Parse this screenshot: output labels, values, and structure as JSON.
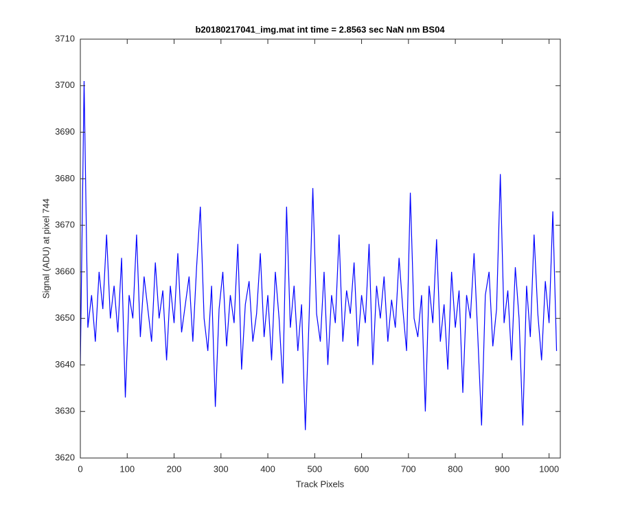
{
  "chart_data": {
    "type": "line",
    "title": "b20180217041_img.mat int time = 2.8563 sec  NaN nm BS04",
    "x_label": "Track Pixels",
    "y_label": "Signal (ADU) at pixel 744",
    "color": "#0000ff",
    "x": [
      0,
      8,
      16,
      24,
      32,
      40,
      48,
      56,
      64,
      72,
      80,
      88,
      96,
      104,
      112,
      120,
      128,
      136,
      144,
      152,
      160,
      168,
      176,
      184,
      192,
      200,
      208,
      216,
      224,
      232,
      240,
      248,
      256,
      264,
      272,
      280,
      288,
      296,
      304,
      312,
      320,
      328,
      336,
      344,
      352,
      360,
      368,
      376,
      384,
      392,
      400,
      408,
      416,
      424,
      432,
      440,
      448,
      456,
      464,
      472,
      480,
      488,
      496,
      504,
      512,
      520,
      528,
      536,
      544,
      552,
      560,
      568,
      576,
      584,
      592,
      600,
      608,
      616,
      624,
      632,
      640,
      648,
      656,
      664,
      672,
      680,
      688,
      696,
      704,
      712,
      720,
      728,
      736,
      744,
      752,
      760,
      768,
      776,
      784,
      792,
      800,
      808,
      816,
      824,
      832,
      840,
      848,
      856,
      864,
      872,
      880,
      888,
      896,
      904,
      912,
      920,
      928,
      936,
      944,
      952,
      960,
      968,
      976,
      984,
      992,
      1000,
      1008,
      1016
    ],
    "values": [
      3640,
      3701,
      3648,
      3655,
      3645,
      3660,
      3652,
      3668,
      3650,
      3657,
      3647,
      3663,
      3633,
      3655,
      3650,
      3668,
      3646,
      3659,
      3652,
      3645,
      3662,
      3650,
      3656,
      3641,
      3657,
      3649,
      3664,
      3647,
      3653,
      3659,
      3645,
      3661,
      3674,
      3650,
      3643,
      3657,
      3631,
      3652,
      3660,
      3644,
      3655,
      3649,
      3666,
      3639,
      3653,
      3658,
      3645,
      3651,
      3664,
      3646,
      3655,
      3641,
      3660,
      3650,
      3636,
      3674,
      3648,
      3657,
      3643,
      3653,
      3626,
      3650,
      3678,
      3651,
      3645,
      3660,
      3640,
      3655,
      3649,
      3668,
      3645,
      3656,
      3651,
      3662,
      3644,
      3655,
      3649,
      3666,
      3640,
      3657,
      3650,
      3659,
      3645,
      3654,
      3648,
      3663,
      3652,
      3643,
      3677,
      3650,
      3646,
      3655,
      3630,
      3657,
      3649,
      3667,
      3645,
      3653,
      3639,
      3660,
      3648,
      3656,
      3634,
      3655,
      3650,
      3664,
      3646,
      3627,
      3655,
      3660,
      3644,
      3652,
      3681,
      3649,
      3656,
      3641,
      3661,
      3650,
      3627,
      3657,
      3646,
      3668,
      3651,
      3641,
      3658,
      3649,
      3673,
      3643
    ],
    "xlim": [
      0,
      1024
    ],
    "xticks": [
      0,
      100,
      200,
      300,
      400,
      500,
      600,
      700,
      800,
      900,
      1000
    ],
    "ylim": [
      3620,
      3710
    ],
    "yticks": [
      3620,
      3630,
      3640,
      3650,
      3660,
      3670,
      3680,
      3690,
      3700,
      3710
    ]
  }
}
